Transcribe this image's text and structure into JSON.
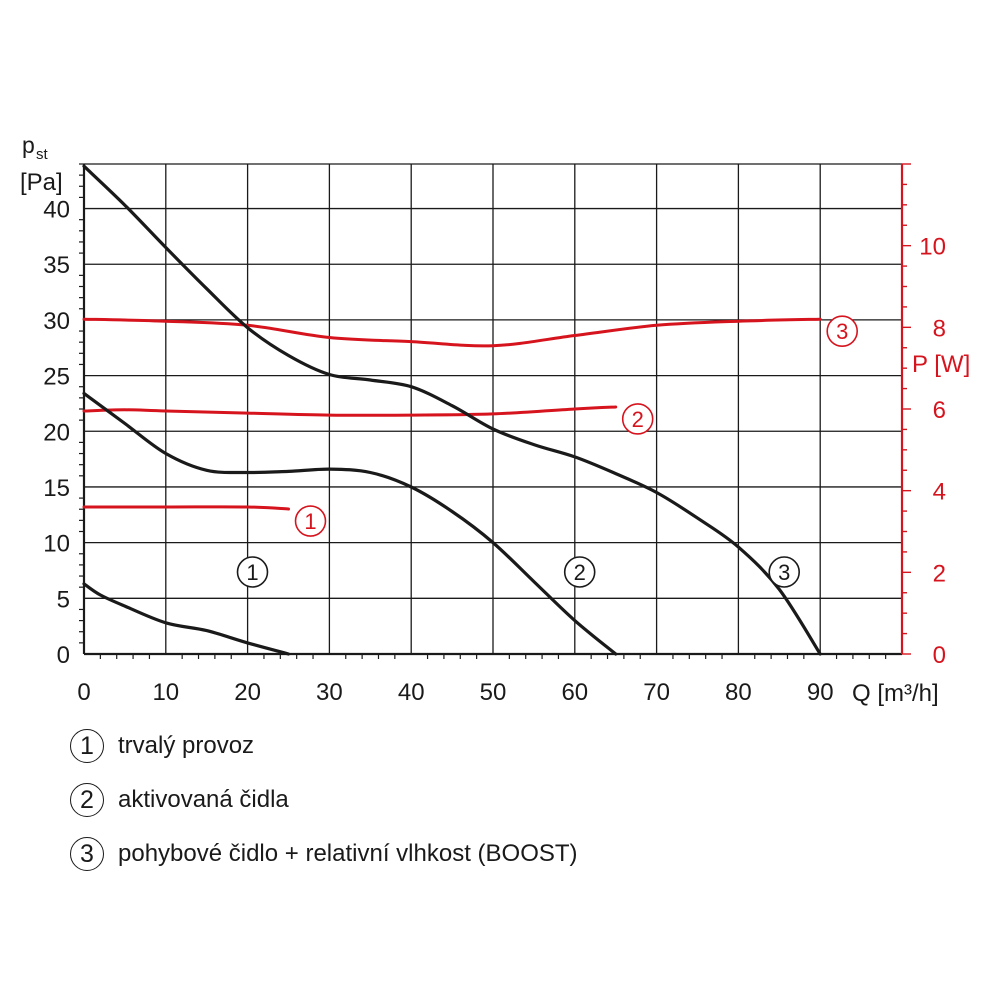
{
  "chart_data": {
    "type": "line",
    "x_axis": {
      "label": "Q [m³/h]",
      "range": [
        0,
        100
      ],
      "ticks": [
        0,
        10,
        20,
        30,
        40,
        50,
        60,
        70,
        80,
        90
      ]
    },
    "y_axis_left": {
      "label_main": "p",
      "label_sub": "st",
      "label_unit": "[Pa]",
      "range": [
        0,
        44
      ],
      "ticks": [
        0,
        5,
        10,
        15,
        20,
        25,
        30,
        35,
        40
      ]
    },
    "y_axis_right": {
      "label": "P [W]",
      "range": [
        0,
        12
      ],
      "ticks": [
        0,
        2,
        4,
        6,
        8,
        10
      ]
    },
    "grid": true,
    "colors": {
      "pressure": "#1a1a1a",
      "power": "#d6141e",
      "grid": "#1a1a1a"
    },
    "pressure_series": [
      {
        "id": "1",
        "label": "1",
        "x": [
          0,
          2,
          5,
          10,
          15,
          20,
          25
        ],
        "y": [
          6.3,
          5.3,
          4.3,
          2.8,
          2.1,
          1.0,
          0
        ]
      },
      {
        "id": "2",
        "label": "2",
        "x": [
          0,
          5,
          10,
          15,
          20,
          25,
          30,
          35,
          40,
          45,
          50,
          55,
          60,
          65
        ],
        "y": [
          23.4,
          20.7,
          18.0,
          16.5,
          16.3,
          16.4,
          16.6,
          16.3,
          15.0,
          12.8,
          10.0,
          6.5,
          3.0,
          0
        ]
      },
      {
        "id": "3",
        "label": "3",
        "x": [
          0,
          5,
          10,
          15,
          20,
          25,
          30,
          35,
          40,
          45,
          50,
          55,
          60,
          65,
          70,
          75,
          80,
          85,
          90
        ],
        "y": [
          43.8,
          40.3,
          36.5,
          32.8,
          29.3,
          26.8,
          25.1,
          24.6,
          24.0,
          22.3,
          20.2,
          18.8,
          17.7,
          16.2,
          14.5,
          12.2,
          9.6,
          5.8,
          0
        ]
      }
    ],
    "power_series": [
      {
        "id": "1",
        "label": "1",
        "x": [
          0,
          10,
          20,
          25
        ],
        "y": [
          3.6,
          3.6,
          3.6,
          3.55
        ]
      },
      {
        "id": "2",
        "label": "2",
        "x": [
          0,
          5,
          10,
          20,
          30,
          40,
          50,
          60,
          65
        ],
        "y": [
          5.95,
          5.98,
          5.95,
          5.9,
          5.85,
          5.85,
          5.88,
          6.0,
          6.05
        ]
      },
      {
        "id": "3",
        "label": "3",
        "x": [
          0,
          10,
          20,
          30,
          40,
          50,
          60,
          70,
          80,
          90
        ],
        "y": [
          8.2,
          8.15,
          8.05,
          7.75,
          7.65,
          7.55,
          7.8,
          8.05,
          8.15,
          8.2
        ]
      }
    ],
    "legend": [
      {
        "marker": "1",
        "text": "trvalý provoz"
      },
      {
        "marker": "2",
        "text": "aktivovaná čidla"
      },
      {
        "marker": "3",
        "text": "pohybové čidlo + relativní vlhkost (BOOST)"
      }
    ]
  }
}
